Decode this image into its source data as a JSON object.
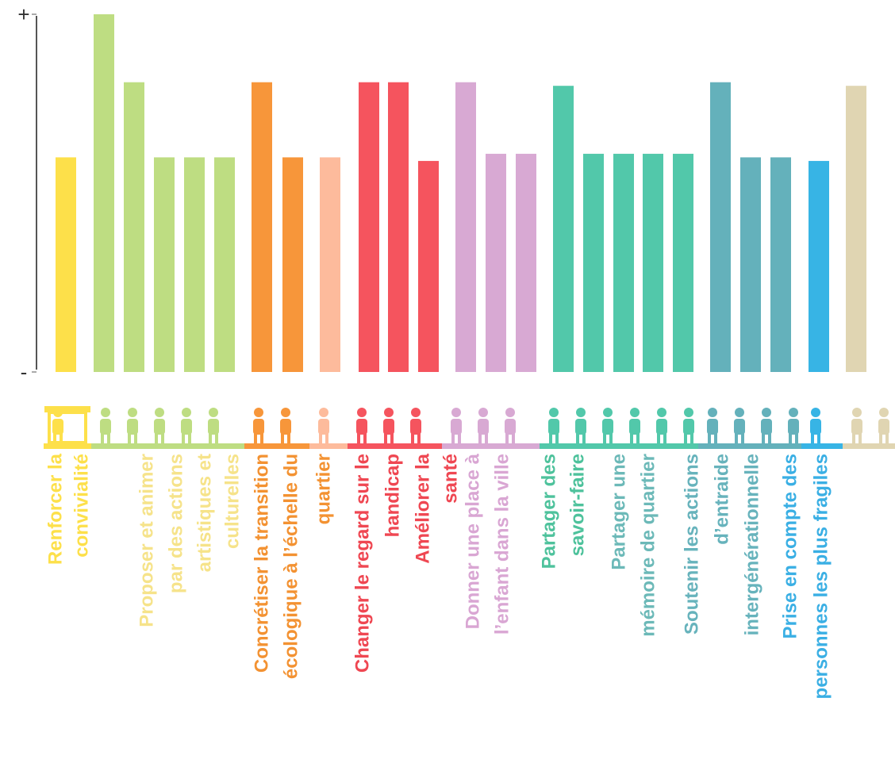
{
  "chart_data": {
    "type": "bar",
    "ylim": [
      0,
      100
    ],
    "yticks": [
      {
        "value": 0,
        "label": "-"
      },
      {
        "value": 100,
        "label": "+"
      }
    ],
    "series": [
      {
        "name": [
          "Renforcer la",
          "convivialité"
        ],
        "color": "#fde04a",
        "label_color": "#fde04a",
        "values": [
          60
        ]
      },
      {
        "name": [
          "Proposer et animer",
          "par des actions",
          "artistiques et",
          "culturelles"
        ],
        "color": "#bedd82",
        "label_color": "#f6e38a",
        "values": [
          100,
          81,
          60,
          60,
          60
        ]
      },
      {
        "name": [
          "Concrétiser la transition",
          "écologique à l’échelle du",
          "quartier"
        ],
        "color": "#f7963a",
        "label_color": "#f39232",
        "values": [
          81,
          60
        ]
      },
      {
        "color": "#fdbb9c",
        "values": [
          60
        ]
      },
      {
        "name": [
          "Changer le regard sur le",
          "handicap"
        ],
        "color": "#f5545e",
        "label_color": "#ef4752",
        "values": [
          81,
          81
        ]
      },
      {
        "name": [
          "Améliorer la",
          "santé"
        ],
        "color": "#f5545e",
        "label_color": "#ef4752",
        "values": [
          59
        ]
      },
      {
        "name": [
          "Donner une place à",
          "l’enfant dans la ville"
        ],
        "color": "#d8a9d3",
        "label_color": "#d9a6d3",
        "values": [
          81,
          61,
          61
        ]
      },
      {
        "name": [
          "Partager des",
          "savoir-faire"
        ],
        "color": "#52c8aa",
        "label_color": "#4ec29c",
        "values": [
          80,
          61
        ]
      },
      {
        "name": [
          "Partager une",
          "mémoire de quartier"
        ],
        "color": "#52c8aa",
        "label_color": "#6cb9b8",
        "values": [
          61,
          61,
          61
        ]
      },
      {
        "name": [
          "Soutenir les actions",
          "d’entraide",
          "intergénérationnelle"
        ],
        "color": "#64b1bb",
        "label_color": "#67b3bc",
        "values": [
          81,
          60,
          60
        ]
      },
      {
        "name": [
          "Prise en compte des",
          "personnes les plus fragiles"
        ],
        "color": "#37b4e5",
        "label_color": "#3aafe4",
        "values": [
          59
        ]
      },
      {
        "color": "#e0d5b2",
        "values": [
          80
        ]
      }
    ]
  }
}
